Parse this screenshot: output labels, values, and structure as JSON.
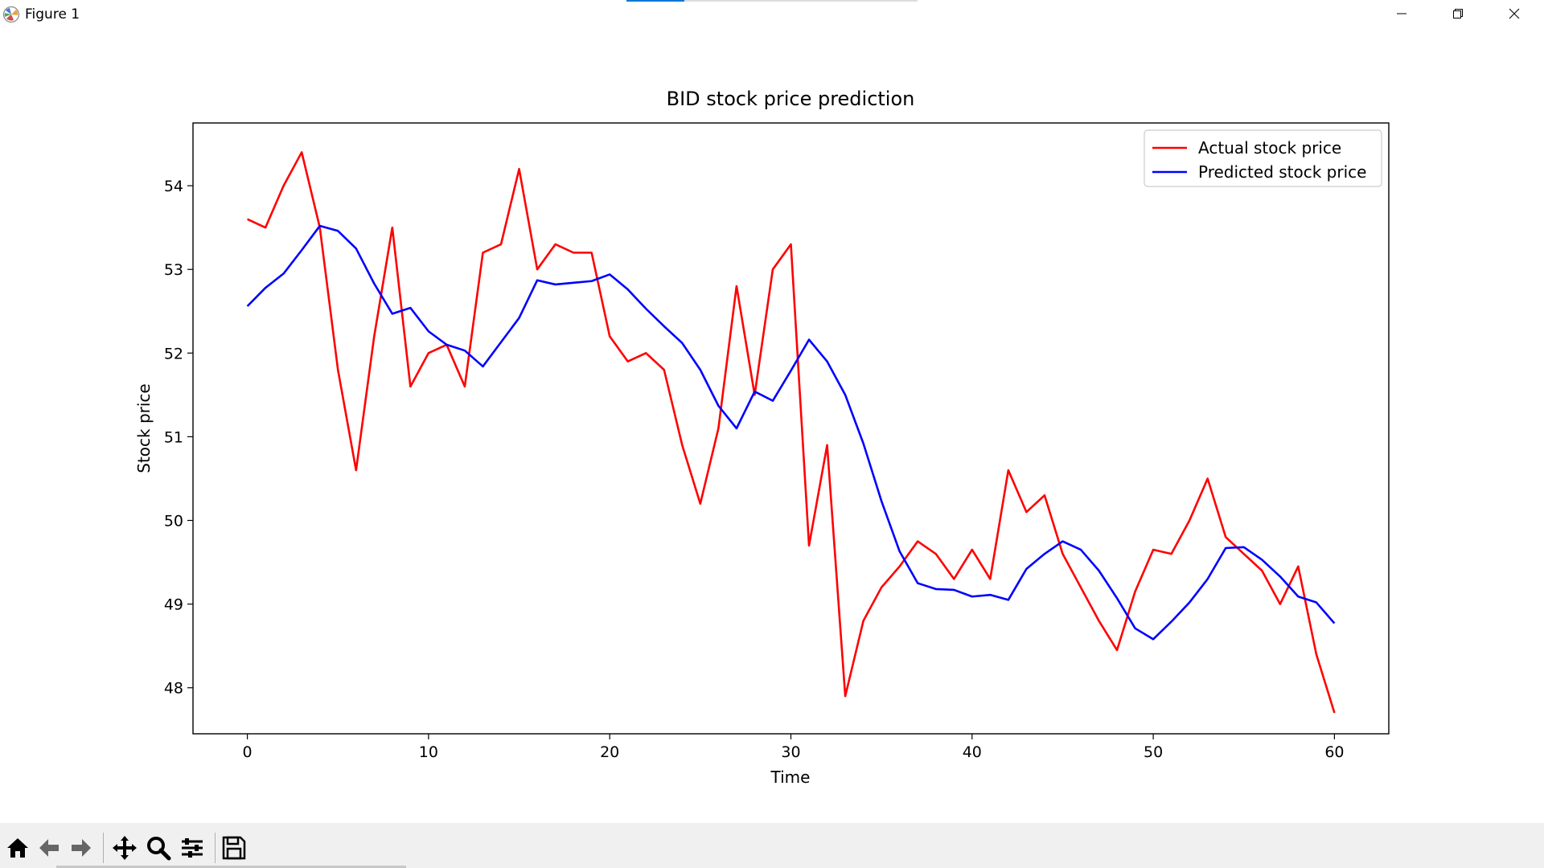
{
  "window": {
    "title": "Figure 1",
    "controls": [
      "minimize-icon",
      "restore-icon",
      "close-icon"
    ]
  },
  "toolbar": {
    "buttons": [
      "home-icon",
      "back-arrow-icon",
      "forward-arrow-icon",
      "pan-icon",
      "zoom-icon",
      "configure-subplots-icon",
      "save-icon"
    ]
  },
  "chart_data": {
    "type": "line",
    "title": "BID stock price prediction",
    "xlabel": "Time",
    "ylabel": "Stock price",
    "xlim": [
      -3,
      63
    ],
    "ylim": [
      47.45,
      54.75
    ],
    "xticks": [
      0,
      10,
      20,
      30,
      40,
      50,
      60
    ],
    "yticks": [
      48,
      49,
      50,
      51,
      52,
      53,
      54
    ],
    "grid": false,
    "legend": "top-right",
    "x": [
      0,
      1,
      2,
      3,
      4,
      5,
      6,
      7,
      8,
      9,
      10,
      11,
      12,
      13,
      14,
      15,
      16,
      17,
      18,
      19,
      20,
      21,
      22,
      23,
      24,
      25,
      26,
      27,
      28,
      29,
      30,
      31,
      32,
      33,
      34,
      35,
      36,
      37,
      38,
      39,
      40,
      41,
      42,
      43,
      44,
      45,
      46,
      47,
      48,
      49,
      50,
      51,
      52,
      53,
      54,
      55,
      56,
      57,
      58,
      59,
      60
    ],
    "series": [
      {
        "name": "Actual stock price",
        "color": "#ff0000",
        "values": [
          53.6,
          53.5,
          54.0,
          54.4,
          53.5,
          51.8,
          50.6,
          52.2,
          53.5,
          51.6,
          52.0,
          52.1,
          51.6,
          53.2,
          53.3,
          54.2,
          53.0,
          53.3,
          53.2,
          53.2,
          52.2,
          51.9,
          52.0,
          51.8,
          50.9,
          50.2,
          51.1,
          52.8,
          51.5,
          53.0,
          53.3,
          49.7,
          50.9,
          47.9,
          48.8,
          49.2,
          49.45,
          49.75,
          49.6,
          49.3,
          49.65,
          49.3,
          50.6,
          50.1,
          50.3,
          49.6,
          49.2,
          48.8,
          48.45,
          49.15,
          49.65,
          49.6,
          50.0,
          50.5,
          49.8,
          49.6,
          49.4,
          49.0,
          49.45,
          48.4,
          47.7
        ]
      },
      {
        "name": "Predicted stock price",
        "color": "#0000ff",
        "values": [
          52.56,
          52.78,
          52.95,
          53.23,
          53.52,
          53.46,
          53.25,
          52.83,
          52.47,
          52.54,
          52.26,
          52.1,
          52.03,
          51.84,
          52.13,
          52.42,
          52.87,
          52.82,
          52.84,
          52.86,
          52.94,
          52.76,
          52.53,
          52.32,
          52.12,
          51.8,
          51.37,
          51.1,
          51.54,
          51.43,
          51.79,
          52.16,
          51.9,
          51.5,
          50.92,
          50.23,
          49.63,
          49.25,
          49.18,
          49.17,
          49.09,
          49.11,
          49.05,
          49.42,
          49.6,
          49.75,
          49.65,
          49.4,
          49.07,
          48.71,
          48.58,
          48.79,
          49.02,
          49.3,
          49.67,
          49.68,
          49.53,
          49.33,
          49.09,
          49.02,
          48.77
        ]
      }
    ]
  }
}
